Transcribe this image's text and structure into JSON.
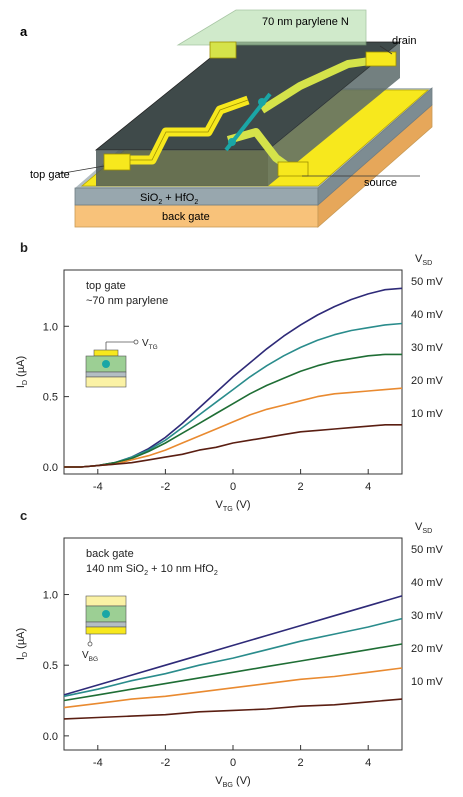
{
  "panel_a": {
    "letter": "a",
    "labels": {
      "parylene": "70 nm parylene N",
      "drain": "drain",
      "top_gate": "top gate",
      "source": "source",
      "dielectric_main": "SiO",
      "dielectric_sub": "2",
      "dielectric_rest": " + HfO",
      "dielectric_sub2": "2",
      "back_gate": "back gate"
    },
    "colors": {
      "gold": "#f7e81d",
      "dark": "#3f4a4a",
      "parylene": "#b7dfb0",
      "sio2": "#98a7ae",
      "backgate": "#f8c27a",
      "cnt": "#1aa6a6"
    }
  },
  "chart_data": [
    {
      "type": "line",
      "panel": "b",
      "annotation_lines": [
        "top gate",
        "~70 nm parylene"
      ],
      "inset_gate_label": "V",
      "inset_gate_sub": "TG",
      "xlabel": "V",
      "xlabel_sub": "TG",
      "xlabel_unit": " (V)",
      "ylabel": "I",
      "ylabel_sub": "D",
      "ylabel_unit": " (µA)",
      "right_header": "V",
      "right_header_sub": "SD",
      "xlim": [
        -5,
        5
      ],
      "ylim": [
        -0.05,
        1.4
      ],
      "xticks": [
        -4,
        -2,
        0,
        2,
        4
      ],
      "yticks": [
        0.0,
        0.5,
        1.0
      ],
      "xtick_labels": [
        "-4",
        "-2",
        "0",
        "2",
        "4"
      ],
      "ytick_labels": [
        "0.0",
        "0.5",
        "1.0"
      ],
      "x": [
        -5,
        -4.5,
        -4,
        -3.5,
        -3,
        -2.5,
        -2,
        -1.5,
        -1,
        -0.5,
        0,
        0.5,
        1,
        1.5,
        2,
        2.5,
        3,
        3.5,
        4,
        4.5,
        5
      ],
      "series": [
        {
          "name": "50 mV",
          "color": "#2e2a78",
          "values": [
            0.0,
            0.0,
            0.01,
            0.03,
            0.07,
            0.13,
            0.21,
            0.31,
            0.42,
            0.53,
            0.64,
            0.74,
            0.84,
            0.93,
            1.01,
            1.08,
            1.14,
            1.19,
            1.23,
            1.26,
            1.27
          ]
        },
        {
          "name": "40 mV",
          "color": "#2a8c8c",
          "values": [
            0.0,
            0.0,
            0.01,
            0.03,
            0.07,
            0.12,
            0.19,
            0.28,
            0.37,
            0.46,
            0.55,
            0.64,
            0.72,
            0.79,
            0.85,
            0.9,
            0.94,
            0.97,
            0.99,
            1.01,
            1.02
          ]
        },
        {
          "name": "30 mV",
          "color": "#1f6e35",
          "values": [
            0.0,
            0.0,
            0.01,
            0.03,
            0.06,
            0.11,
            0.17,
            0.24,
            0.31,
            0.38,
            0.45,
            0.52,
            0.58,
            0.63,
            0.68,
            0.72,
            0.75,
            0.77,
            0.79,
            0.8,
            0.8
          ]
        },
        {
          "name": "20 mV",
          "color": "#e98a30",
          "values": [
            0.0,
            0.0,
            0.01,
            0.02,
            0.05,
            0.08,
            0.12,
            0.17,
            0.22,
            0.27,
            0.32,
            0.37,
            0.41,
            0.44,
            0.47,
            0.5,
            0.52,
            0.53,
            0.54,
            0.55,
            0.56
          ]
        },
        {
          "name": "10 mV",
          "color": "#5a1e12",
          "values": [
            0.0,
            0.0,
            0.01,
            0.02,
            0.03,
            0.05,
            0.07,
            0.09,
            0.12,
            0.14,
            0.17,
            0.19,
            0.21,
            0.23,
            0.25,
            0.26,
            0.27,
            0.28,
            0.29,
            0.3,
            0.3
          ]
        }
      ]
    },
    {
      "type": "line",
      "panel": "c",
      "annotation_lines": [
        "back gate",
        "140 nm SiO",
        "2",
        " + 10 nm HfO",
        "2"
      ],
      "inset_gate_label": "V",
      "inset_gate_sub": "BG",
      "xlabel": "V",
      "xlabel_sub": "BG",
      "xlabel_unit": " (V)",
      "ylabel": "I",
      "ylabel_sub": "D",
      "ylabel_unit": " (µA)",
      "right_header": "V",
      "right_header_sub": "SD",
      "xlim": [
        -5,
        5
      ],
      "ylim": [
        -0.1,
        1.4
      ],
      "xticks": [
        -4,
        -2,
        0,
        2,
        4
      ],
      "yticks": [
        0.0,
        0.5,
        1.0
      ],
      "xtick_labels": [
        "-4",
        "-2",
        "0",
        "2",
        "4"
      ],
      "ytick_labels": [
        "0.0",
        "0.5",
        "1.0"
      ],
      "x": [
        -5,
        -4,
        -3,
        -2,
        -1,
        0,
        1,
        2,
        3,
        4,
        5
      ],
      "series": [
        {
          "name": "50 mV",
          "color": "#2e2a78",
          "values": [
            0.29,
            0.36,
            0.43,
            0.5,
            0.57,
            0.64,
            0.71,
            0.78,
            0.85,
            0.92,
            0.99
          ]
        },
        {
          "name": "40 mV",
          "color": "#2a8c8c",
          "values": [
            0.28,
            0.33,
            0.39,
            0.44,
            0.5,
            0.55,
            0.61,
            0.67,
            0.72,
            0.77,
            0.83
          ]
        },
        {
          "name": "30 mV",
          "color": "#1f6e35",
          "values": [
            0.25,
            0.29,
            0.33,
            0.37,
            0.41,
            0.45,
            0.49,
            0.53,
            0.57,
            0.61,
            0.65
          ]
        },
        {
          "name": "20 mV",
          "color": "#e98a30",
          "values": [
            0.2,
            0.23,
            0.26,
            0.28,
            0.31,
            0.34,
            0.37,
            0.4,
            0.42,
            0.45,
            0.48
          ]
        },
        {
          "name": "10 mV",
          "color": "#5a1e12",
          "values": [
            0.12,
            0.13,
            0.14,
            0.15,
            0.17,
            0.18,
            0.19,
            0.21,
            0.22,
            0.24,
            0.26
          ]
        }
      ]
    }
  ]
}
